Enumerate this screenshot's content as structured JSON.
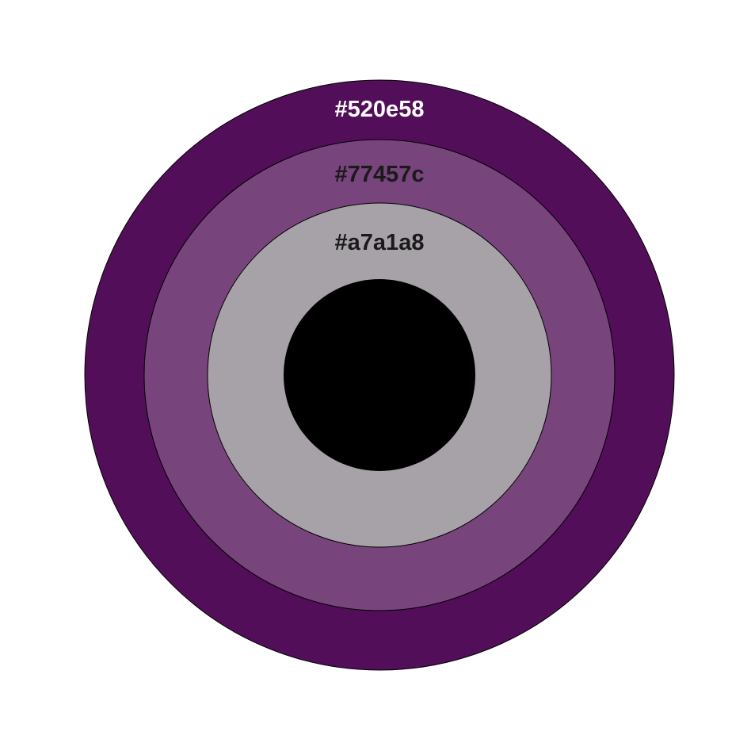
{
  "rings": [
    {
      "label": "#520e58",
      "fill": "#520e58",
      "label_color": "#ffffff"
    },
    {
      "label": "#77457c",
      "fill": "#77457c",
      "label_color": "#1a1a1a"
    },
    {
      "label": "#a7a1a8",
      "fill": "#a7a1a8",
      "label_color": "#1a1a1a"
    }
  ],
  "center": {
    "fill": "#000000"
  },
  "outline_color": "#000000",
  "background": "#ffffff"
}
